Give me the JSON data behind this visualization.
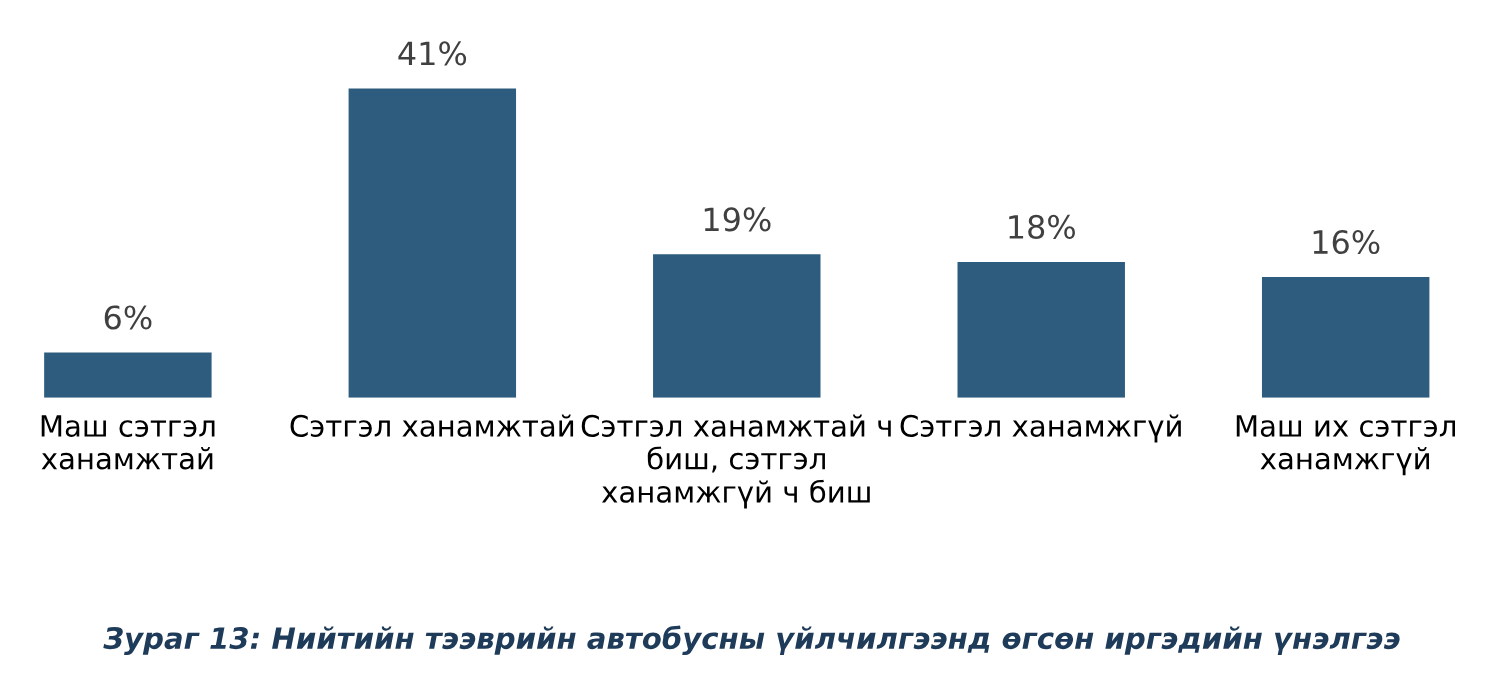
{
  "chart_data": {
    "type": "bar",
    "categories": [
      "Маш сэтгэл ханамжтай",
      "Сэтгэл ханамжтай",
      "Сэтгэл ханамжтай ч биш, сэтгэл ханамжгүй ч биш",
      "Сэтгэл ханамжгүй",
      "Маш их сэтгэл ханамжгүй"
    ],
    "values": [
      6,
      41,
      19,
      18,
      16
    ],
    "value_labels": [
      "6%",
      "41%",
      "19%",
      "18%",
      "16%"
    ],
    "color": "#2e5c7e",
    "annotations": [
      "Зураг 13: Нийтийн тээврийн автобусны үйлчилгээнд өгсөн иргэдийн үнэлгээ"
    ],
    "grid": false,
    "legend": false
  }
}
